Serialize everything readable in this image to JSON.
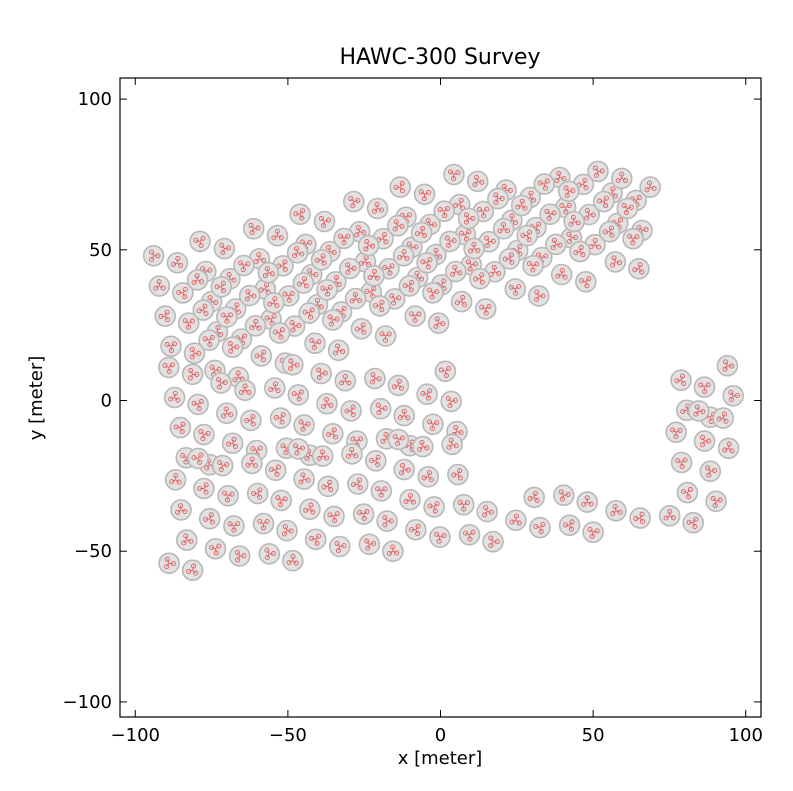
{
  "chart_data": {
    "type": "scatter",
    "title": "HAWC-300 Survey",
    "xlabel": "x [meter]",
    "ylabel": "y [meter]",
    "xlim": [
      -105,
      105
    ],
    "ylim": [
      -105,
      107
    ],
    "xticks": [
      -100,
      -50,
      0,
      50,
      100
    ],
    "yticks": [
      -100,
      -50,
      0,
      50,
      100
    ],
    "xtick_labels": [
      "−100",
      "−50",
      "0",
      "50",
      "100"
    ],
    "ytick_labels": [
      "−100",
      "−50",
      "0",
      "50",
      "100"
    ],
    "grid": false,
    "marker": "tank with three PMTs",
    "tank_fill": "#e2e2e2",
    "tank_stroke": "#b8b8b8",
    "pmt_color": "#e06060",
    "layout": {
      "grid_a": [
        8.6,
        1.65
      ],
      "grid_b": [
        -1.9,
        -10.6
      ],
      "sub_a": [
        10.7,
        7.8
      ],
      "sub_b": [
        -2.6,
        -10.6
      ],
      "subarray_rows": 3,
      "subarray_cols": 3,
      "north_rows": 2,
      "south_rows": 2
    },
    "series": [
      {
        "tanks": [
          [
            -94.0,
            48.0
          ],
          [
            -86.2,
            45.7
          ],
          [
            -78.8,
            52.8
          ],
          [
            -70.8,
            50.4
          ],
          [
            -92.1,
            38.0
          ],
          [
            -84.4,
            35.7
          ],
          [
            -76.9,
            42.8
          ],
          [
            -69.0,
            40.4
          ],
          [
            -90.2,
            28.0
          ],
          [
            -82.5,
            25.7
          ],
          [
            -75.0,
            32.8
          ],
          [
            -67.1,
            30.4
          ],
          [
            -88.3,
            18.0
          ],
          [
            -80.6,
            15.7
          ],
          [
            -73.1,
            22.8
          ],
          [
            -65.2,
            20.4
          ]
        ]
      }
    ]
  }
}
